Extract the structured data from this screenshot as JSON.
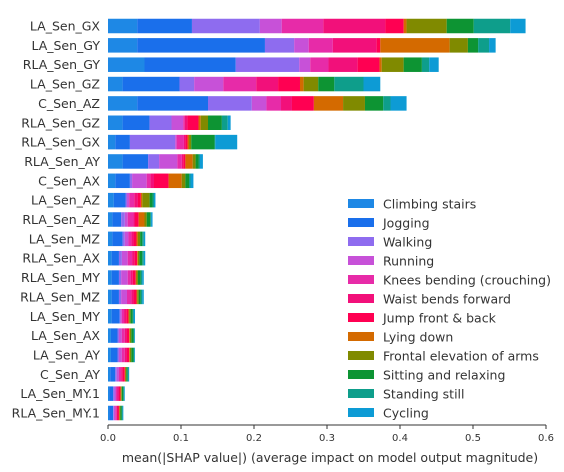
{
  "chart_data": {
    "type": "bar",
    "orientation": "horizontal",
    "stacked": true,
    "xlabel": "mean(|SHAP value|) (average impact on model output magnitude)",
    "ylabel": "",
    "xlim": [
      0,
      0.6
    ],
    "xticks": [
      "0.0",
      "0.1",
      "0.2",
      "0.3",
      "0.4",
      "0.5",
      "0.6"
    ],
    "xtick_values": [
      0,
      0.1,
      0.2,
      0.3,
      0.4,
      0.5,
      0.6
    ],
    "grid": false,
    "legend_position": "lower-right",
    "categories": [
      "LA_Sen_GX",
      "LA_Sen_GY",
      "RLA_Sen_GY",
      "LA_Sen_GZ",
      "C_Sen_AZ",
      "RLA_Sen_GZ",
      "RLA_Sen_GX",
      "RLA_Sen_AY",
      "C_Sen_AX",
      "LA_Sen_AZ",
      "RLA_Sen_AZ",
      "LA_Sen_MZ",
      "RLA_Sen_AX",
      "RLA_Sen_MY",
      "RLA_Sen_MZ",
      "LA_Sen_MY",
      "LA_Sen_AX",
      "LA_Sen_AY",
      "C_Sen_AY",
      "LA_Sen_MY.1",
      "RLA_Sen_MY.1"
    ],
    "series": [
      {
        "name": "Climbing stairs",
        "color": "#1E88E5",
        "values": [
          0.04,
          0.04,
          0.05,
          0.02,
          0.04,
          0.02,
          0.01,
          0.02,
          0.01,
          0.008,
          0.006,
          0.006,
          0.005,
          0.005,
          0.005,
          0.005,
          0.004,
          0.004,
          0.003,
          0.002,
          0.002
        ]
      },
      {
        "name": "Jogging",
        "color": "#1A6FEB",
        "values": [
          0.075,
          0.175,
          0.125,
          0.078,
          0.097,
          0.037,
          0.02,
          0.035,
          0.02,
          0.016,
          0.012,
          0.014,
          0.01,
          0.01,
          0.01,
          0.011,
          0.009,
          0.009,
          0.007,
          0.005,
          0.005
        ]
      },
      {
        "name": "Walking",
        "color": "#8E6CEF",
        "values": [
          0.093,
          0.04,
          0.087,
          0.02,
          0.06,
          0.03,
          0.062,
          0.015,
          0.003,
          0.002,
          0.005,
          0.003,
          0.004,
          0.003,
          0.003,
          0.001,
          0.002,
          0.002,
          0.002,
          0.002,
          0.001
        ]
      },
      {
        "name": "Running",
        "color": "#C751D8",
        "values": [
          0.03,
          0.02,
          0.015,
          0.04,
          0.02,
          0.016,
          0.002,
          0.025,
          0.02,
          0.003,
          0.004,
          0.005,
          0.008,
          0.009,
          0.008,
          0.002,
          0.004,
          0.004,
          0.003,
          0.002,
          0.002
        ]
      },
      {
        "name": "Knees bending (crouching)",
        "color": "#E72BA8",
        "values": [
          0.057,
          0.033,
          0.025,
          0.045,
          0.02,
          0.002,
          0.01,
          0.006,
          0.005,
          0.007,
          0.008,
          0.004,
          0.006,
          0.004,
          0.006,
          0.003,
          0.004,
          0.004,
          0.003,
          0.002,
          0.002
        ]
      },
      {
        "name": "Waist bends forward",
        "color": "#F2107A",
        "values": [
          0.085,
          0.06,
          0.04,
          0.03,
          0.015,
          0.004,
          0.002,
          0.002,
          0.005,
          0.005,
          0.002,
          0.003,
          0.003,
          0.003,
          0.003,
          0.003,
          0.003,
          0.003,
          0.002,
          0.002,
          0.001
        ]
      },
      {
        "name": "Jump front & back",
        "color": "#FF0052",
        "values": [
          0.025,
          0.005,
          0.03,
          0.03,
          0.03,
          0.015,
          0.003,
          0.003,
          0.02,
          0.004,
          0.005,
          0.004,
          0.004,
          0.004,
          0.004,
          0.003,
          0.003,
          0.003,
          0.003,
          0.002,
          0.002
        ]
      },
      {
        "name": "Lying down",
        "color": "#D46A00",
        "values": [
          0.004,
          0.095,
          0.003,
          0.005,
          0.04,
          0.003,
          0.002,
          0.01,
          0.018,
          0.002,
          0.008,
          0.002,
          0.001,
          0.001,
          0.001,
          0.001,
          0.001,
          0.001,
          0.001,
          0.001,
          0.001
        ]
      },
      {
        "name": "Frontal elevation of arms",
        "color": "#808A00",
        "values": [
          0.055,
          0.025,
          0.03,
          0.02,
          0.03,
          0.01,
          0.003,
          0.004,
          0.005,
          0.01,
          0.003,
          0.003,
          0.002,
          0.002,
          0.002,
          0.002,
          0.002,
          0.002,
          0.001,
          0.001,
          0.001
        ]
      },
      {
        "name": "Sitting and relaxing",
        "color": "#0D9433",
        "values": [
          0.037,
          0.014,
          0.025,
          0.022,
          0.025,
          0.019,
          0.032,
          0.004,
          0.005,
          0.004,
          0.005,
          0.003,
          0.004,
          0.004,
          0.003,
          0.003,
          0.003,
          0.003,
          0.002,
          0.002,
          0.002
        ]
      },
      {
        "name": "Standing still",
        "color": "#0E9E8B",
        "values": [
          0.05,
          0.015,
          0.01,
          0.04,
          0.01,
          0.008,
          0.001,
          0.002,
          0.002,
          0.002,
          0.001,
          0.002,
          0.002,
          0.002,
          0.002,
          0.001,
          0.001,
          0.001,
          0.001,
          0.001,
          0.001
        ]
      },
      {
        "name": "Cycling",
        "color": "#0D9BD5",
        "values": [
          0.021,
          0.009,
          0.013,
          0.023,
          0.022,
          0.004,
          0.03,
          0.004,
          0.004,
          0.002,
          0.002,
          0.002,
          0.002,
          0.002,
          0.002,
          0.002,
          0.001,
          0.001,
          0.001,
          0.001,
          0.001
        ]
      }
    ]
  }
}
